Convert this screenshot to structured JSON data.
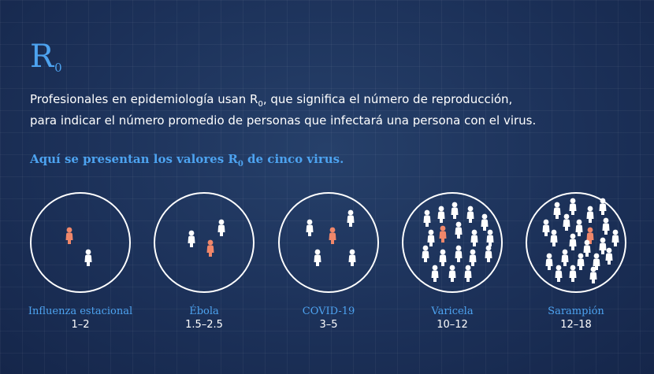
{
  "title": {
    "symbol": "R",
    "subscript": "0"
  },
  "description": {
    "line1_a": "Profesionales en epidemiología usan R",
    "line1_sub": "0",
    "line1_b": ", que significa el número de reproducción,",
    "line2": "para indicar el número promedio de personas que infectará una persona con el virus."
  },
  "highlight": {
    "text_a": "Aquí se presentan los valores R",
    "sub": "0",
    "text_b": " de cinco virus."
  },
  "colors": {
    "accent": "#4da3f0",
    "infected": "#f0876a",
    "person": "#ffffff",
    "background": "#1c3159"
  },
  "viruses": [
    {
      "name": "Influenza estacional",
      "range": "1–2"
    },
    {
      "name": "Ébola",
      "range": "1.5–2.5"
    },
    {
      "name": "COVID-19",
      "range": "3–5"
    },
    {
      "name": "Varicela",
      "range": "10–12"
    },
    {
      "name": "Sarampión",
      "range": "12–18"
    }
  ]
}
